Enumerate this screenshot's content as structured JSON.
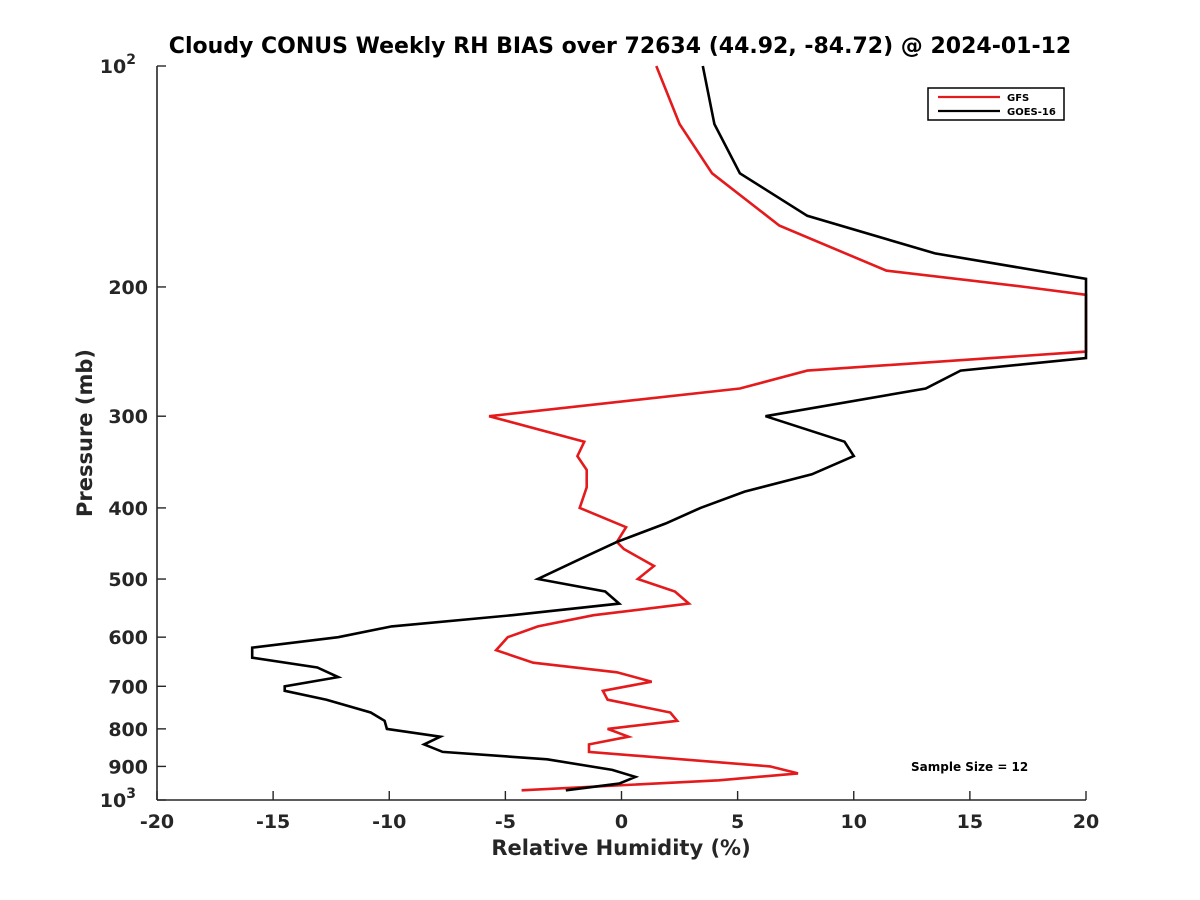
{
  "chart_data": {
    "type": "line",
    "title": "Cloudy CONUS Weekly RH BIAS over 72634 (44.92, -84.72) @ 2024-01-12",
    "xlabel": "Relative Humidity (%)",
    "ylabel": "Pressure (mb)",
    "xlim": [
      -20,
      20
    ],
    "ylim": [
      100,
      1000
    ],
    "y_scale": "log",
    "y_reversed": true,
    "grid": false,
    "legend_position": "top-right",
    "x_ticks": [
      {
        "value": -20,
        "label": "-20"
      },
      {
        "value": -15,
        "label": "-15"
      },
      {
        "value": -10,
        "label": "-10"
      },
      {
        "value": -5,
        "label": "-5"
      },
      {
        "value": 0,
        "label": "0"
      },
      {
        "value": 5,
        "label": "5"
      },
      {
        "value": 10,
        "label": "10"
      },
      {
        "value": 15,
        "label": "15"
      },
      {
        "value": 20,
        "label": "20"
      }
    ],
    "y_ticks": [
      {
        "value": 100,
        "base": "10",
        "exp": "2"
      },
      {
        "value": 200,
        "base": "200",
        "exp": ""
      },
      {
        "value": 300,
        "base": "300",
        "exp": ""
      },
      {
        "value": 400,
        "base": "400",
        "exp": ""
      },
      {
        "value": 500,
        "base": "500",
        "exp": ""
      },
      {
        "value": 600,
        "base": "600",
        "exp": ""
      },
      {
        "value": 700,
        "base": "700",
        "exp": ""
      },
      {
        "value": 800,
        "base": "800",
        "exp": ""
      },
      {
        "value": 900,
        "base": "900",
        "exp": ""
      },
      {
        "value": 1000,
        "base": "10",
        "exp": "3"
      }
    ],
    "annotation": "Sample Size = 12",
    "series": [
      {
        "name": "GFS",
        "color": "#e41a1c",
        "points": [
          [
            1.5,
            100
          ],
          [
            2.5,
            120
          ],
          [
            3.9,
            140
          ],
          [
            6.8,
            165
          ],
          [
            11.4,
            190
          ],
          [
            17.4,
            200
          ],
          [
            20.0,
            205
          ],
          [
            20.0,
            245
          ],
          [
            8.0,
            260
          ],
          [
            5.1,
            275
          ],
          [
            -5.7,
            300
          ],
          [
            -1.6,
            325
          ],
          [
            -1.9,
            340
          ],
          [
            -1.5,
            355
          ],
          [
            -1.5,
            375
          ],
          [
            -1.8,
            400
          ],
          [
            0.2,
            425
          ],
          [
            -0.2,
            445
          ],
          [
            0.1,
            455
          ],
          [
            1.4,
            480
          ],
          [
            0.7,
            500
          ],
          [
            2.3,
            520
          ],
          [
            2.9,
            540
          ],
          [
            -1.2,
            560
          ],
          [
            -3.6,
            580
          ],
          [
            -4.9,
            600
          ],
          [
            -5.4,
            625
          ],
          [
            -3.8,
            650
          ],
          [
            -0.2,
            670
          ],
          [
            1.3,
            690
          ],
          [
            -0.8,
            710
          ],
          [
            -0.6,
            730
          ],
          [
            2.1,
            760
          ],
          [
            2.4,
            780
          ],
          [
            -0.6,
            800
          ],
          [
            0.3,
            820
          ],
          [
            -1.4,
            840
          ],
          [
            -1.4,
            860
          ],
          [
            6.4,
            900
          ],
          [
            7.6,
            920
          ],
          [
            4.2,
            940
          ],
          [
            -4.3,
            970
          ]
        ]
      },
      {
        "name": "GOES-16",
        "color": "#000000",
        "points": [
          [
            3.5,
            100
          ],
          [
            4.0,
            120
          ],
          [
            5.1,
            140
          ],
          [
            8.0,
            160
          ],
          [
            13.5,
            180
          ],
          [
            20.0,
            195
          ],
          [
            20.0,
            250
          ],
          [
            14.6,
            260
          ],
          [
            13.1,
            275
          ],
          [
            6.2,
            300
          ],
          [
            9.6,
            325
          ],
          [
            10.0,
            340
          ],
          [
            8.2,
            360
          ],
          [
            5.3,
            380
          ],
          [
            3.4,
            400
          ],
          [
            1.9,
            420
          ],
          [
            -0.2,
            445
          ],
          [
            -1.5,
            465
          ],
          [
            -3.6,
            500
          ],
          [
            -0.7,
            520
          ],
          [
            -0.1,
            540
          ],
          [
            -4.7,
            560
          ],
          [
            -9.9,
            580
          ],
          [
            -12.2,
            600
          ],
          [
            -15.9,
            620
          ],
          [
            -15.9,
            640
          ],
          [
            -13.1,
            660
          ],
          [
            -12.2,
            680
          ],
          [
            -14.5,
            700
          ],
          [
            -14.5,
            710
          ],
          [
            -12.7,
            730
          ],
          [
            -10.8,
            760
          ],
          [
            -10.2,
            780
          ],
          [
            -10.1,
            800
          ],
          [
            -7.8,
            820
          ],
          [
            -8.5,
            840
          ],
          [
            -7.7,
            860
          ],
          [
            -3.2,
            880
          ],
          [
            -0.4,
            910
          ],
          [
            0.6,
            930
          ],
          [
            -0.1,
            950
          ],
          [
            -2.4,
            970
          ]
        ]
      }
    ]
  }
}
